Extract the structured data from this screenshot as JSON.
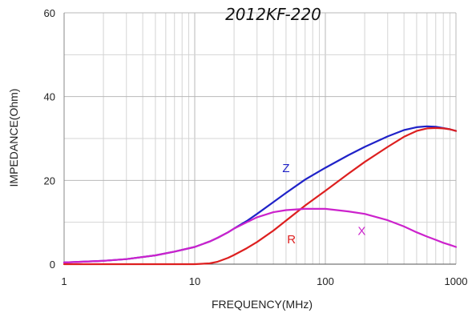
{
  "chart_data": {
    "type": "line",
    "title": "2012KF-220",
    "xlabel": "FREQUENCY(MHz)",
    "ylabel": "IMPEDANCE(Ohm)",
    "x_scale": "log",
    "xlim": [
      1,
      1000
    ],
    "ylim": [
      0,
      60
    ],
    "grid": true,
    "x_ticks": [
      1,
      10,
      100,
      1000
    ],
    "x_tick_labels": [
      "1",
      "10",
      "100",
      "1000"
    ],
    "y_ticks": [
      0,
      20,
      40,
      60
    ],
    "y_tick_labels": [
      "0",
      "20",
      "40",
      "60"
    ],
    "series": [
      {
        "name": "Z",
        "color": "#1f22c8",
        "x": [
          1,
          2,
          3,
          5,
          7,
          10,
          13,
          15,
          18,
          20,
          25,
          30,
          40,
          50,
          70,
          100,
          150,
          200,
          300,
          400,
          500,
          600,
          700,
          800,
          900,
          1000
        ],
        "y": [
          0.4,
          0.8,
          1.2,
          2.1,
          3.0,
          4.1,
          5.4,
          6.3,
          7.6,
          8.5,
          10.3,
          12.0,
          14.8,
          17.0,
          20.2,
          23.0,
          26.0,
          28.0,
          30.5,
          32.0,
          32.7,
          32.9,
          32.8,
          32.5,
          32.2,
          31.8
        ]
      },
      {
        "name": "R",
        "color": "#dd1f1f",
        "x": [
          1,
          2,
          5,
          10,
          13,
          15,
          18,
          20,
          25,
          30,
          40,
          50,
          70,
          100,
          150,
          200,
          300,
          400,
          500,
          600,
          700,
          800,
          900,
          1000
        ],
        "y": [
          0,
          0,
          0,
          0,
          0.2,
          0.6,
          1.5,
          2.2,
          3.8,
          5.3,
          8.0,
          10.4,
          14.0,
          17.5,
          21.6,
          24.4,
          28.0,
          30.4,
          31.8,
          32.4,
          32.5,
          32.4,
          32.2,
          31.8
        ]
      },
      {
        "name": "X",
        "color": "#cc22cc",
        "x": [
          1,
          2,
          3,
          5,
          7,
          10,
          13,
          15,
          18,
          20,
          25,
          30,
          40,
          50,
          70,
          100,
          150,
          200,
          300,
          400,
          500,
          600,
          700,
          800,
          900,
          1000
        ],
        "y": [
          0.4,
          0.8,
          1.2,
          2.1,
          3.0,
          4.1,
          5.4,
          6.3,
          7.6,
          8.5,
          10.0,
          11.2,
          12.4,
          12.9,
          13.2,
          13.2,
          12.6,
          12.0,
          10.5,
          9.0,
          7.6,
          6.6,
          5.8,
          5.1,
          4.6,
          4.1
        ]
      }
    ]
  }
}
